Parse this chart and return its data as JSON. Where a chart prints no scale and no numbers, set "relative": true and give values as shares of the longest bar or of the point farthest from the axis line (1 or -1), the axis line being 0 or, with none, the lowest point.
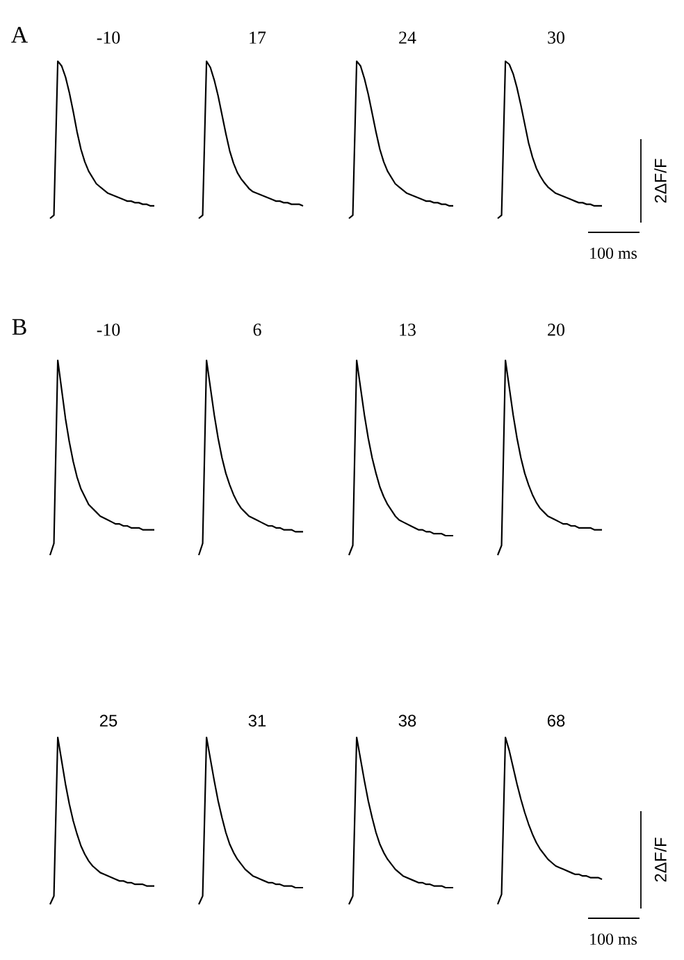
{
  "chart_data": [
    {
      "type": "line",
      "title": "-10",
      "relative": true,
      "color": "#000000",
      "annotations": [
        "A"
      ],
      "categories": [
        null,
        null,
        null,
        null,
        null,
        null,
        null,
        null,
        null,
        null,
        null,
        null,
        null,
        null,
        null,
        null,
        null,
        null,
        null,
        null,
        null,
        null,
        null,
        null,
        null,
        null,
        null,
        null
      ],
      "values": [
        0,
        0.02,
        1.0,
        0.97,
        0.9,
        0.8,
        0.68,
        0.55,
        0.44,
        0.36,
        0.3,
        0.26,
        0.22,
        0.2,
        0.18,
        0.16,
        0.15,
        0.14,
        0.13,
        0.12,
        0.11,
        0.11,
        0.1,
        0.1,
        0.09,
        0.09,
        0.08,
        0.08
      ]
    },
    {
      "type": "line",
      "title": "17",
      "relative": true,
      "color": "#000000",
      "categories": [
        null,
        null,
        null,
        null,
        null,
        null,
        null,
        null,
        null,
        null,
        null,
        null,
        null,
        null,
        null,
        null,
        null,
        null,
        null,
        null,
        null,
        null,
        null,
        null,
        null,
        null,
        null,
        null
      ],
      "values": [
        0,
        0.02,
        1.0,
        0.96,
        0.88,
        0.78,
        0.66,
        0.54,
        0.43,
        0.35,
        0.29,
        0.25,
        0.22,
        0.19,
        0.17,
        0.16,
        0.15,
        0.14,
        0.13,
        0.12,
        0.11,
        0.11,
        0.1,
        0.1,
        0.09,
        0.09,
        0.09,
        0.08
      ]
    },
    {
      "type": "line",
      "title": "24",
      "relative": true,
      "color": "#000000",
      "categories": [
        null,
        null,
        null,
        null,
        null,
        null,
        null,
        null,
        null,
        null,
        null,
        null,
        null,
        null,
        null,
        null,
        null,
        null,
        null,
        null,
        null,
        null,
        null,
        null,
        null,
        null,
        null,
        null
      ],
      "values": [
        0,
        0.02,
        1.0,
        0.97,
        0.89,
        0.79,
        0.67,
        0.55,
        0.44,
        0.36,
        0.3,
        0.26,
        0.22,
        0.2,
        0.18,
        0.16,
        0.15,
        0.14,
        0.13,
        0.12,
        0.11,
        0.11,
        0.1,
        0.1,
        0.09,
        0.09,
        0.08,
        0.08
      ]
    },
    {
      "type": "line",
      "title": "30",
      "relative": true,
      "color": "#000000",
      "annotations": [
        "2ΔF/F",
        "100 ms"
      ],
      "categories": [
        null,
        null,
        null,
        null,
        null,
        null,
        null,
        null,
        null,
        null,
        null,
        null,
        null,
        null,
        null,
        null,
        null,
        null,
        null,
        null,
        null,
        null,
        null,
        null,
        null,
        null,
        null,
        null
      ],
      "values": [
        0,
        0.02,
        1.0,
        0.98,
        0.92,
        0.83,
        0.72,
        0.6,
        0.48,
        0.39,
        0.32,
        0.27,
        0.23,
        0.2,
        0.18,
        0.16,
        0.15,
        0.14,
        0.13,
        0.12,
        0.11,
        0.1,
        0.1,
        0.09,
        0.09,
        0.08,
        0.08,
        0.08
      ]
    },
    {
      "type": "line",
      "title": "-10",
      "relative": true,
      "color": "#000000",
      "annotations": [
        "B"
      ],
      "categories": [
        null,
        null,
        null,
        null,
        null,
        null,
        null,
        null,
        null,
        null,
        null,
        null,
        null,
        null,
        null,
        null,
        null,
        null,
        null,
        null,
        null,
        null,
        null,
        null,
        null,
        null,
        null,
        null
      ],
      "values": [
        0,
        0.06,
        1.0,
        0.85,
        0.7,
        0.58,
        0.48,
        0.4,
        0.34,
        0.3,
        0.26,
        0.24,
        0.22,
        0.2,
        0.19,
        0.18,
        0.17,
        0.16,
        0.16,
        0.15,
        0.15,
        0.14,
        0.14,
        0.14,
        0.13,
        0.13,
        0.13,
        0.13
      ]
    },
    {
      "type": "line",
      "title": "6",
      "relative": true,
      "color": "#000000",
      "categories": [
        null,
        null,
        null,
        null,
        null,
        null,
        null,
        null,
        null,
        null,
        null,
        null,
        null,
        null,
        null,
        null,
        null,
        null,
        null,
        null,
        null,
        null,
        null,
        null,
        null,
        null,
        null,
        null
      ],
      "values": [
        0,
        0.06,
        1.0,
        0.86,
        0.72,
        0.6,
        0.5,
        0.42,
        0.36,
        0.31,
        0.27,
        0.24,
        0.22,
        0.2,
        0.19,
        0.18,
        0.17,
        0.16,
        0.15,
        0.15,
        0.14,
        0.14,
        0.13,
        0.13,
        0.13,
        0.12,
        0.12,
        0.12
      ]
    },
    {
      "type": "line",
      "title": "13",
      "relative": true,
      "color": "#000000",
      "categories": [
        null,
        null,
        null,
        null,
        null,
        null,
        null,
        null,
        null,
        null,
        null,
        null,
        null,
        null,
        null,
        null,
        null,
        null,
        null,
        null,
        null,
        null,
        null,
        null,
        null,
        null,
        null,
        null
      ],
      "values": [
        0,
        0.05,
        1.0,
        0.86,
        0.72,
        0.6,
        0.5,
        0.42,
        0.35,
        0.3,
        0.26,
        0.23,
        0.2,
        0.18,
        0.17,
        0.16,
        0.15,
        0.14,
        0.13,
        0.13,
        0.12,
        0.12,
        0.11,
        0.11,
        0.11,
        0.1,
        0.1,
        0.1
      ]
    },
    {
      "type": "line",
      "title": "20",
      "relative": true,
      "color": "#000000",
      "categories": [
        null,
        null,
        null,
        null,
        null,
        null,
        null,
        null,
        null,
        null,
        null,
        null,
        null,
        null,
        null,
        null,
        null,
        null,
        null,
        null,
        null,
        null,
        null,
        null,
        null,
        null,
        null,
        null
      ],
      "values": [
        0,
        0.05,
        1.0,
        0.86,
        0.72,
        0.6,
        0.5,
        0.42,
        0.36,
        0.31,
        0.27,
        0.24,
        0.22,
        0.2,
        0.19,
        0.18,
        0.17,
        0.16,
        0.16,
        0.15,
        0.15,
        0.14,
        0.14,
        0.14,
        0.14,
        0.13,
        0.13,
        0.13
      ]
    },
    {
      "type": "line",
      "title": "25",
      "relative": true,
      "color": "#000000",
      "categories": [
        null,
        null,
        null,
        null,
        null,
        null,
        null,
        null,
        null,
        null,
        null,
        null,
        null,
        null,
        null,
        null,
        null,
        null,
        null,
        null,
        null,
        null,
        null,
        null,
        null,
        null,
        null,
        null
      ],
      "values": [
        0,
        0.05,
        1.0,
        0.86,
        0.72,
        0.6,
        0.5,
        0.42,
        0.35,
        0.3,
        0.26,
        0.23,
        0.21,
        0.19,
        0.18,
        0.17,
        0.16,
        0.15,
        0.14,
        0.14,
        0.13,
        0.13,
        0.12,
        0.12,
        0.12,
        0.11,
        0.11,
        0.11
      ]
    },
    {
      "type": "line",
      "title": "31",
      "relative": true,
      "color": "#000000",
      "categories": [
        null,
        null,
        null,
        null,
        null,
        null,
        null,
        null,
        null,
        null,
        null,
        null,
        null,
        null,
        null,
        null,
        null,
        null,
        null,
        null,
        null,
        null,
        null,
        null,
        null,
        null,
        null,
        null
      ],
      "values": [
        0,
        0.05,
        1.0,
        0.87,
        0.74,
        0.62,
        0.52,
        0.43,
        0.36,
        0.31,
        0.27,
        0.24,
        0.21,
        0.19,
        0.17,
        0.16,
        0.15,
        0.14,
        0.13,
        0.13,
        0.12,
        0.12,
        0.11,
        0.11,
        0.11,
        0.1,
        0.1,
        0.1
      ]
    },
    {
      "type": "line",
      "title": "38",
      "relative": true,
      "color": "#000000",
      "categories": [
        null,
        null,
        null,
        null,
        null,
        null,
        null,
        null,
        null,
        null,
        null,
        null,
        null,
        null,
        null,
        null,
        null,
        null,
        null,
        null,
        null,
        null,
        null,
        null,
        null,
        null,
        null,
        null
      ],
      "values": [
        0,
        0.05,
        1.0,
        0.87,
        0.74,
        0.62,
        0.52,
        0.43,
        0.36,
        0.31,
        0.27,
        0.24,
        0.21,
        0.19,
        0.17,
        0.16,
        0.15,
        0.14,
        0.13,
        0.13,
        0.12,
        0.12,
        0.11,
        0.11,
        0.11,
        0.1,
        0.1,
        0.1
      ]
    },
    {
      "type": "line",
      "title": "68",
      "relative": true,
      "color": "#000000",
      "annotations": [
        "2ΔF/F",
        "100 ms"
      ],
      "categories": [
        null,
        null,
        null,
        null,
        null,
        null,
        null,
        null,
        null,
        null,
        null,
        null,
        null,
        null,
        null,
        null,
        null,
        null,
        null,
        null,
        null,
        null,
        null,
        null,
        null,
        null,
        null,
        null
      ],
      "values": [
        0,
        0.06,
        1.0,
        0.92,
        0.82,
        0.72,
        0.63,
        0.55,
        0.48,
        0.42,
        0.37,
        0.33,
        0.3,
        0.27,
        0.25,
        0.23,
        0.22,
        0.21,
        0.2,
        0.19,
        0.18,
        0.18,
        0.17,
        0.17,
        0.16,
        0.16,
        0.16,
        0.15
      ]
    }
  ]
}
